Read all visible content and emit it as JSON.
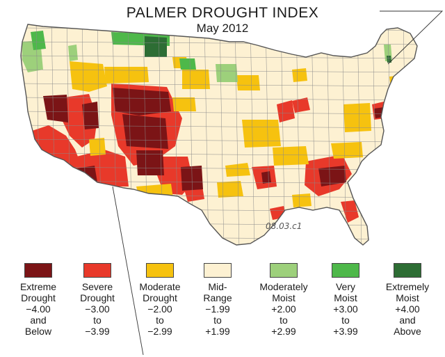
{
  "title": "PALMER DROUGHT INDEX",
  "subtitle": "May 2012",
  "figure_code": "08.03.c1",
  "colors": {
    "extreme_drought": "#7b1416",
    "severe_drought": "#e8392a",
    "moderate_drought": "#f6c20f",
    "mid_range": "#fdf1d2",
    "moderately_moist": "#9dd07b",
    "very_moist": "#4eb84a",
    "extremely_moist": "#2d6d34",
    "border": "#6b6b6b",
    "leader_line": "#333333"
  },
  "legend": [
    {
      "key": "extreme_drought",
      "lines": [
        "Extreme",
        "Drought",
        "−4.00",
        "and",
        "Below"
      ]
    },
    {
      "key": "severe_drought",
      "lines": [
        "Severe",
        "Drought",
        "−3.00",
        "to",
        "−3.99"
      ]
    },
    {
      "key": "moderate_drought",
      "lines": [
        "Moderate",
        "Drought",
        "−2.00",
        "to",
        "−2.99"
      ]
    },
    {
      "key": "mid_range",
      "lines": [
        "Mid-",
        "Range",
        "−1.99",
        "to",
        "+1.99"
      ]
    },
    {
      "key": "moderately_moist",
      "lines": [
        "Moderately",
        "Moist",
        "+2.00",
        "to",
        "+2.99"
      ]
    },
    {
      "key": "very_moist",
      "lines": [
        "Very",
        "Moist",
        "+3.00",
        "to",
        "+3.99"
      ]
    },
    {
      "key": "extremely_moist",
      "lines": [
        "Extremely",
        "Moist",
        "+4.00",
        "and",
        "Above"
      ]
    }
  ]
}
